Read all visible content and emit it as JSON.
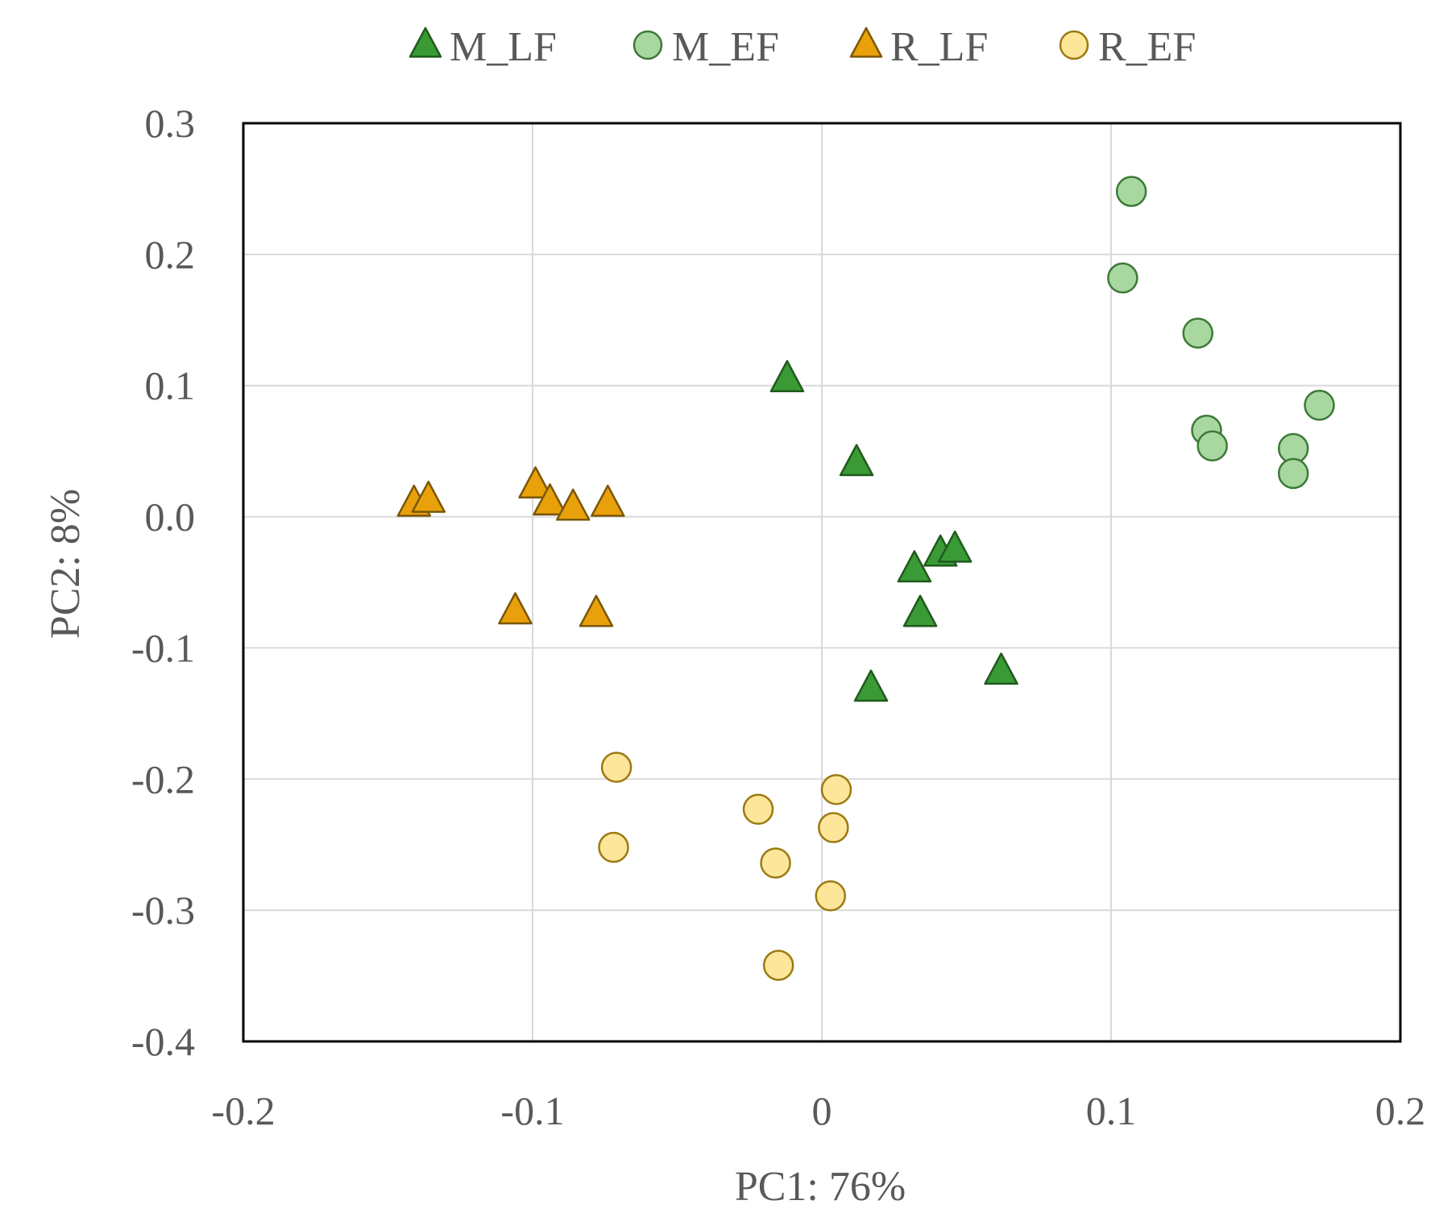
{
  "chart_data": {
    "type": "scatter",
    "title": "",
    "xlabel": "PC1: 76%",
    "ylabel": "PC2: 8%",
    "xlim": [
      -0.2,
      0.2
    ],
    "ylim": [
      -0.4,
      0.3
    ],
    "xticks": [
      -0.2,
      -0.1,
      0,
      0.1,
      0.2
    ],
    "xtick_labels": [
      "-0.2",
      "-0.1",
      "0",
      "0.1",
      "0.2"
    ],
    "yticks": [
      0.3,
      0.2,
      0.1,
      0.0,
      -0.1,
      -0.2,
      -0.3,
      -0.4
    ],
    "ytick_labels": [
      "0.3",
      "0.2",
      "0.1",
      "0.0",
      "-0.1",
      "-0.2",
      "-0.3",
      "-0.4"
    ],
    "grid": true,
    "legend_position": "top",
    "series": [
      {
        "name": "M_LF",
        "marker": "triangle",
        "fill": "#3a9a35",
        "stroke": "#1f5a1c",
        "points": [
          [
            -0.012,
            0.105
          ],
          [
            0.012,
            0.041
          ],
          [
            0.032,
            -0.04
          ],
          [
            0.041,
            -0.028
          ],
          [
            0.046,
            -0.025
          ],
          [
            0.034,
            -0.074
          ],
          [
            0.062,
            -0.118
          ],
          [
            0.017,
            -0.131
          ]
        ]
      },
      {
        "name": "M_EF",
        "marker": "circle",
        "fill": "#a8d8a0",
        "stroke": "#3d7a37",
        "points": [
          [
            0.107,
            0.248
          ],
          [
            0.104,
            0.182
          ],
          [
            0.13,
            0.14
          ],
          [
            0.133,
            0.066
          ],
          [
            0.135,
            0.054
          ],
          [
            0.163,
            0.052
          ],
          [
            0.163,
            0.033
          ],
          [
            0.172,
            0.085
          ]
        ]
      },
      {
        "name": "R_LF",
        "marker": "triangle",
        "fill": "#e8a10a",
        "stroke": "#7a5608",
        "points": [
          [
            -0.141,
            0.01
          ],
          [
            -0.136,
            0.013
          ],
          [
            -0.099,
            0.024
          ],
          [
            -0.094,
            0.011
          ],
          [
            -0.086,
            0.007
          ],
          [
            -0.074,
            0.01
          ],
          [
            -0.106,
            -0.072
          ],
          [
            -0.078,
            -0.074
          ]
        ]
      },
      {
        "name": "R_EF",
        "marker": "circle",
        "fill": "#fde69a",
        "stroke": "#9c7a12",
        "points": [
          [
            -0.071,
            -0.191
          ],
          [
            -0.072,
            -0.252
          ],
          [
            -0.022,
            -0.223
          ],
          [
            -0.016,
            -0.264
          ],
          [
            0.005,
            -0.208
          ],
          [
            0.004,
            -0.237
          ],
          [
            0.003,
            -0.289
          ],
          [
            -0.015,
            -0.342
          ]
        ]
      }
    ]
  }
}
